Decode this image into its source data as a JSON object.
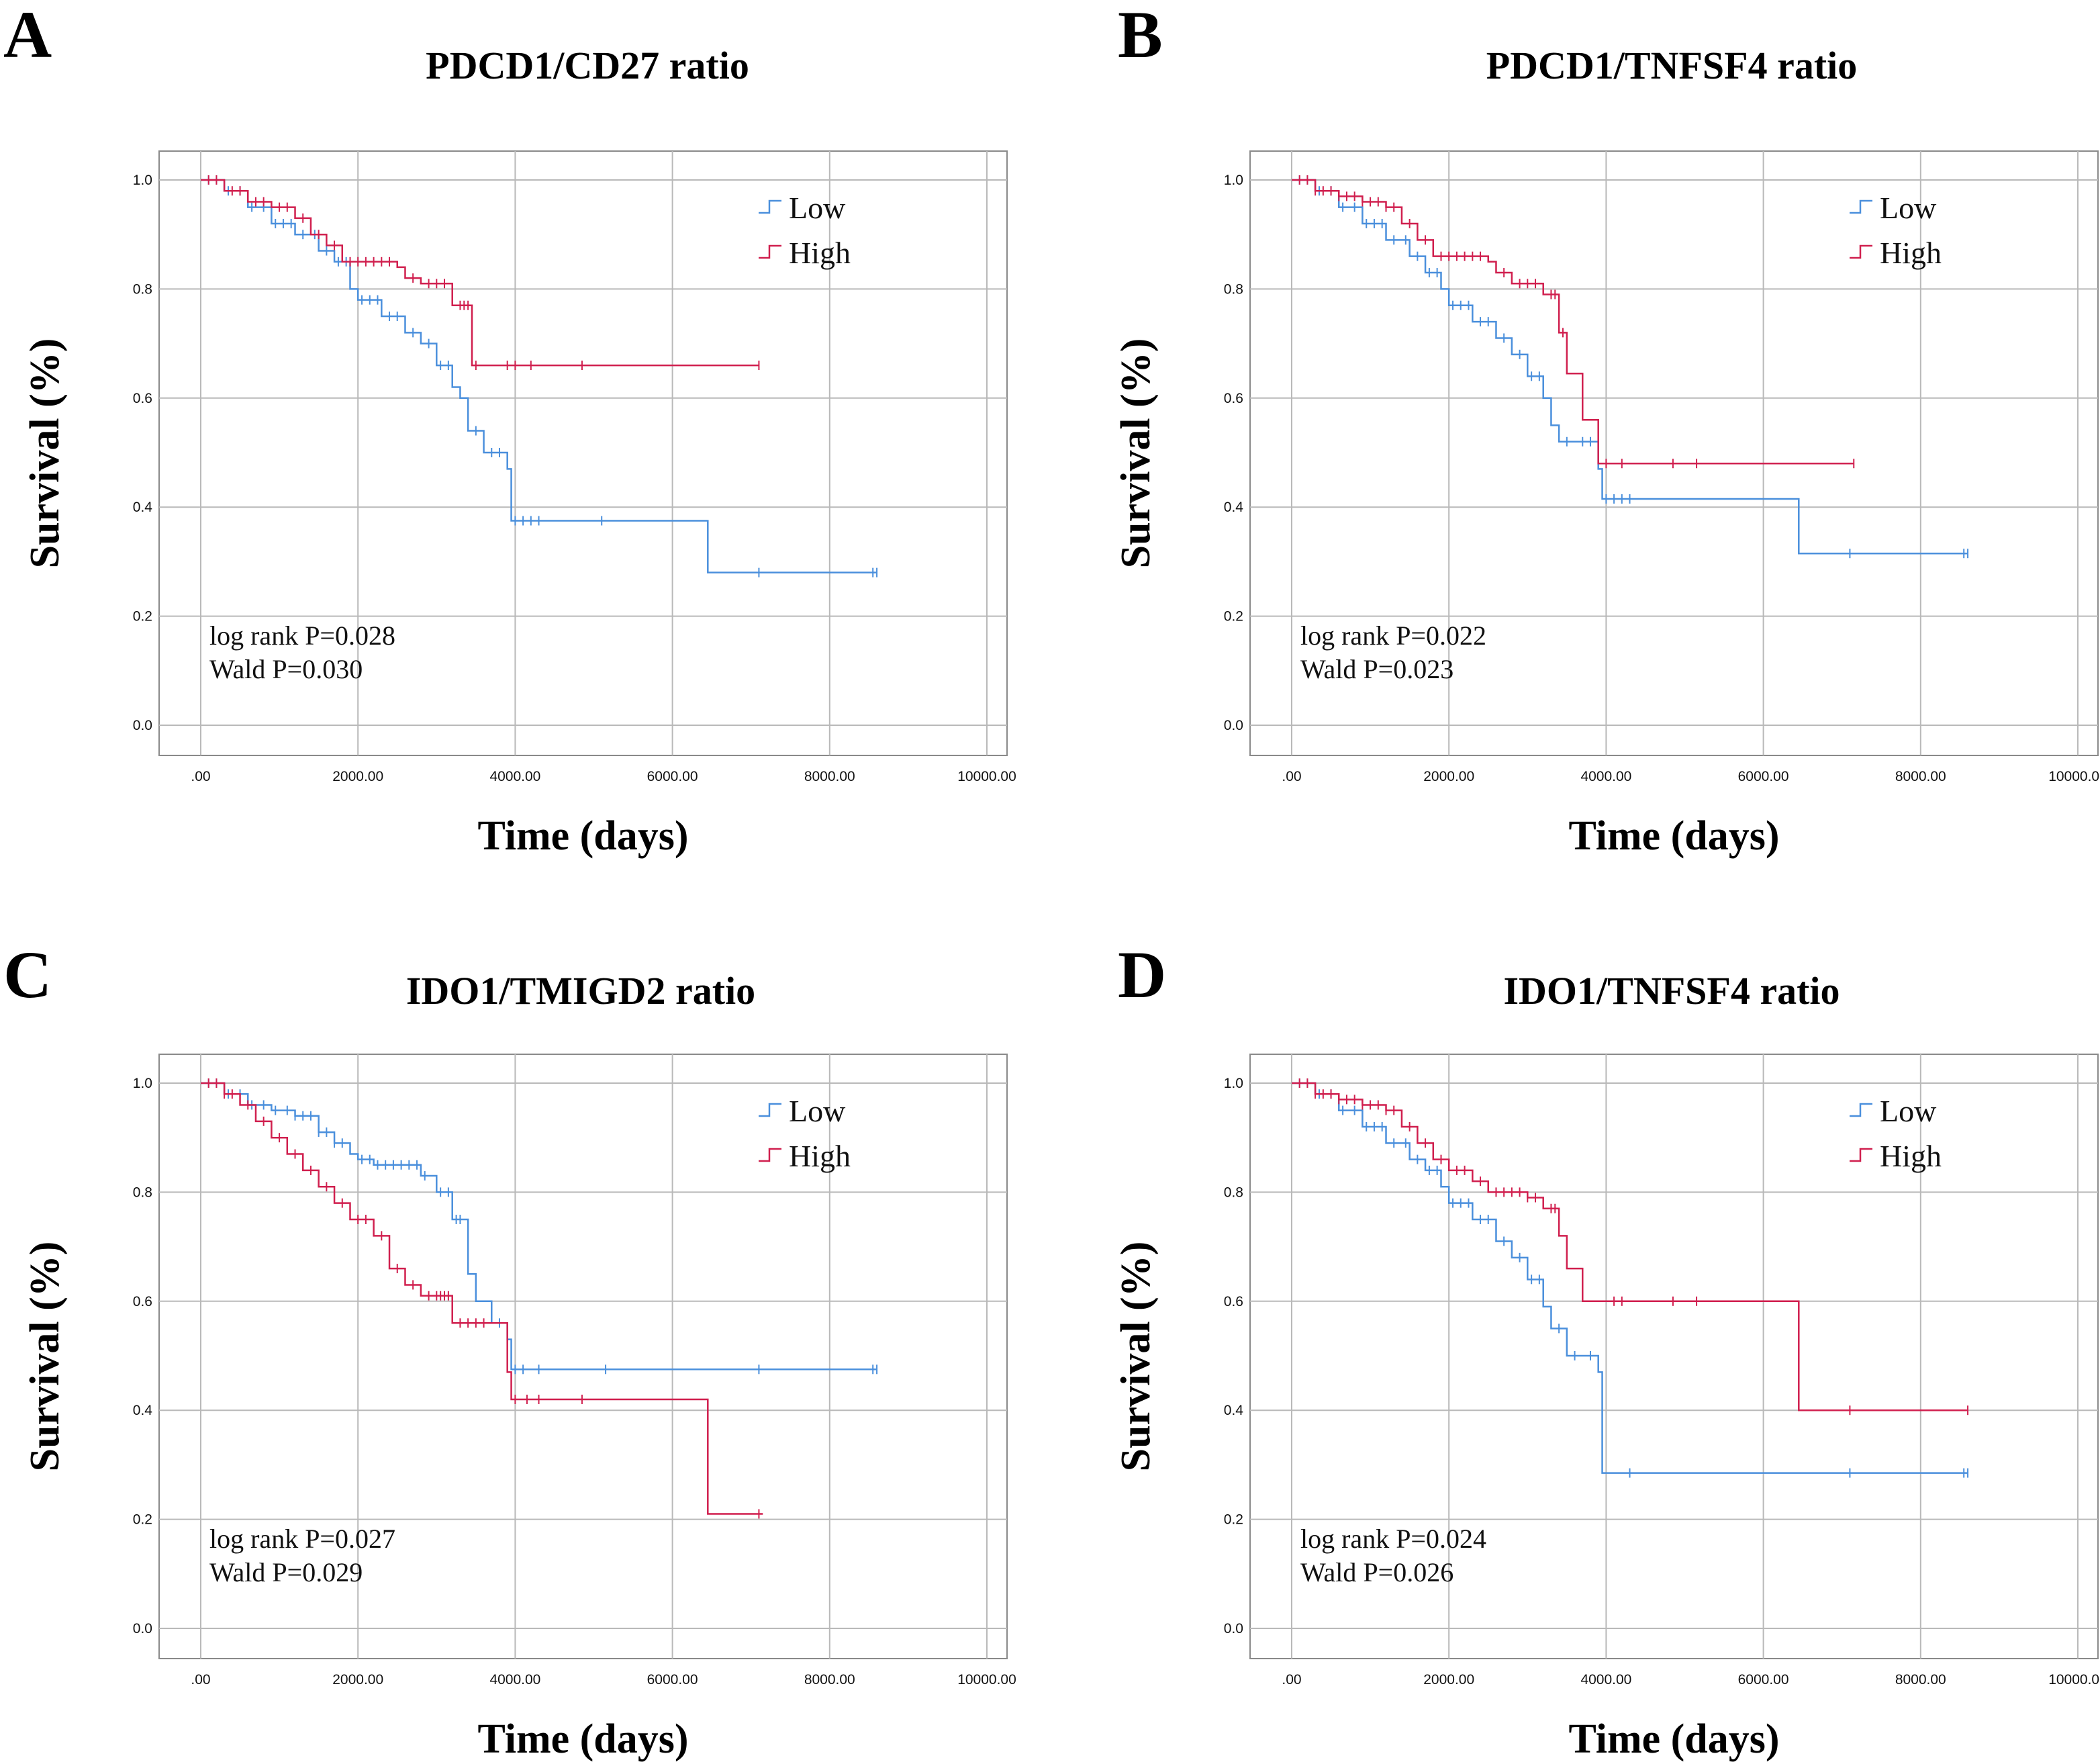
{
  "chart_data": [
    {
      "panel": "A",
      "type": "line",
      "subtype": "kaplan-meier",
      "title": "PDCD1/CD27 ratio",
      "xlabel": "Time (days)",
      "ylabel": "Survival (%)",
      "xlim": [
        0,
        10000
      ],
      "ylim": [
        0,
        1
      ],
      "xticks": [
        ".00",
        "2000.00",
        "4000.00",
        "6000.00",
        "8000.00",
        "10000.00"
      ],
      "yticks": [
        "0.0",
        "0.2",
        "0.4",
        "0.6",
        "0.8",
        "1.0"
      ],
      "legend": "top-right",
      "annotations": [
        "log rank P=0.028",
        "Wald P=0.030"
      ],
      "series": [
        {
          "name": "Low",
          "color": "#4a8fdc",
          "steps": [
            [
              0,
              1.0
            ],
            [
              300,
              0.98
            ],
            [
              600,
              0.95
            ],
            [
              900,
              0.92
            ],
            [
              1200,
              0.9
            ],
            [
              1500,
              0.87
            ],
            [
              1700,
              0.85
            ],
            [
              1900,
              0.8
            ],
            [
              2000,
              0.78
            ],
            [
              2300,
              0.75
            ],
            [
              2600,
              0.72
            ],
            [
              2800,
              0.7
            ],
            [
              3000,
              0.66
            ],
            [
              3200,
              0.62
            ],
            [
              3300,
              0.6
            ],
            [
              3400,
              0.54
            ],
            [
              3600,
              0.5
            ],
            [
              3900,
              0.47
            ],
            [
              3950,
              0.375
            ],
            [
              6450,
              0.28
            ],
            [
              8600,
              0.28
            ]
          ],
          "censor": [
            100,
            200,
            350,
            500,
            650,
            800,
            950,
            1050,
            1150,
            1300,
            1450,
            1600,
            1750,
            1850,
            2050,
            2150,
            2250,
            2400,
            2500,
            2700,
            2900,
            3050,
            3150,
            3500,
            3700,
            3800,
            4000,
            4100,
            4200,
            4300,
            5100,
            7100,
            8550,
            8600
          ]
        },
        {
          "name": "High",
          "color": "#d01f4e",
          "steps": [
            [
              0,
              1.0
            ],
            [
              300,
              0.98
            ],
            [
              600,
              0.96
            ],
            [
              900,
              0.95
            ],
            [
              1200,
              0.93
            ],
            [
              1400,
              0.9
            ],
            [
              1600,
              0.88
            ],
            [
              1800,
              0.85
            ],
            [
              2500,
              0.84
            ],
            [
              2600,
              0.82
            ],
            [
              2800,
              0.81
            ],
            [
              3200,
              0.77
            ],
            [
              3450,
              0.66
            ],
            [
              7100,
              0.66
            ]
          ],
          "censor": [
            100,
            200,
            400,
            500,
            700,
            800,
            1000,
            1100,
            1300,
            1500,
            1700,
            1900,
            2000,
            2100,
            2200,
            2300,
            2400,
            2700,
            2900,
            3000,
            3100,
            3300,
            3350,
            3400,
            3500,
            3900,
            4000,
            4200,
            4850,
            7100
          ]
        }
      ]
    },
    {
      "panel": "B",
      "type": "line",
      "subtype": "kaplan-meier",
      "title": "PDCD1/TNFSF4 ratio",
      "xlabel": "Time (days)",
      "ylabel": "Survival (%)",
      "xlim": [
        0,
        10000
      ],
      "ylim": [
        0,
        1
      ],
      "xticks": [
        ".00",
        "2000.00",
        "4000.00",
        "6000.00",
        "8000.00",
        "10000.00"
      ],
      "yticks": [
        "0.0",
        "0.2",
        "0.4",
        "0.6",
        "0.8",
        "1.0"
      ],
      "legend": "top-right",
      "annotations": [
        "log rank P=0.022",
        "Wald P=0.023"
      ],
      "series": [
        {
          "name": "Low",
          "color": "#4a8fdc",
          "steps": [
            [
              0,
              1.0
            ],
            [
              300,
              0.98
            ],
            [
              600,
              0.95
            ],
            [
              900,
              0.92
            ],
            [
              1200,
              0.89
            ],
            [
              1500,
              0.86
            ],
            [
              1700,
              0.83
            ],
            [
              1900,
              0.8
            ],
            [
              2000,
              0.77
            ],
            [
              2300,
              0.74
            ],
            [
              2600,
              0.71
            ],
            [
              2800,
              0.68
            ],
            [
              3000,
              0.64
            ],
            [
              3200,
              0.6
            ],
            [
              3300,
              0.55
            ],
            [
              3400,
              0.52
            ],
            [
              3900,
              0.47
            ],
            [
              3950,
              0.415
            ],
            [
              6450,
              0.315
            ],
            [
              8600,
              0.315
            ]
          ],
          "censor": [
            100,
            200,
            350,
            500,
            650,
            800,
            950,
            1050,
            1150,
            1300,
            1450,
            1600,
            1750,
            1850,
            2050,
            2150,
            2250,
            2400,
            2500,
            2700,
            2900,
            3050,
            3150,
            3500,
            3700,
            3800,
            4000,
            4100,
            4200,
            4300,
            7100,
            8550,
            8600
          ]
        },
        {
          "name": "High",
          "color": "#d01f4e",
          "steps": [
            [
              0,
              1.0
            ],
            [
              300,
              0.98
            ],
            [
              600,
              0.97
            ],
            [
              900,
              0.96
            ],
            [
              1200,
              0.95
            ],
            [
              1400,
              0.92
            ],
            [
              1600,
              0.89
            ],
            [
              1800,
              0.86
            ],
            [
              2500,
              0.85
            ],
            [
              2600,
              0.83
            ],
            [
              2800,
              0.81
            ],
            [
              3200,
              0.79
            ],
            [
              3400,
              0.72
            ],
            [
              3500,
              0.645
            ],
            [
              3700,
              0.56
            ],
            [
              3900,
              0.48
            ],
            [
              7150,
              0.48
            ]
          ],
          "censor": [
            100,
            200,
            300,
            400,
            500,
            600,
            700,
            800,
            900,
            1000,
            1100,
            1200,
            1300,
            1500,
            1700,
            1900,
            2000,
            2100,
            2200,
            2300,
            2400,
            2700,
            2900,
            3000,
            3100,
            3300,
            3350,
            3450,
            4000,
            4200,
            4850,
            5150,
            7150
          ]
        }
      ]
    },
    {
      "panel": "C",
      "type": "line",
      "subtype": "kaplan-meier",
      "title": "IDO1/TMIGD2 ratio",
      "xlabel": "Time (days)",
      "ylabel": "Survival (%)",
      "xlim": [
        0,
        10000
      ],
      "ylim": [
        0,
        1
      ],
      "xticks": [
        ".00",
        "2000.00",
        "4000.00",
        "6000.00",
        "8000.00",
        "10000.00"
      ],
      "yticks": [
        "0.0",
        "0.2",
        "0.4",
        "0.6",
        "0.8",
        "1.0"
      ],
      "legend": "top-right",
      "annotations": [
        "log rank P=0.027",
        "Wald P=0.029"
      ],
      "series": [
        {
          "name": "Low",
          "color": "#4a8fdc",
          "steps": [
            [
              0,
              1.0
            ],
            [
              300,
              0.98
            ],
            [
              600,
              0.96
            ],
            [
              900,
              0.95
            ],
            [
              1200,
              0.94
            ],
            [
              1500,
              0.91
            ],
            [
              1700,
              0.89
            ],
            [
              1900,
              0.87
            ],
            [
              2000,
              0.86
            ],
            [
              2200,
              0.85
            ],
            [
              2800,
              0.83
            ],
            [
              3000,
              0.8
            ],
            [
              3200,
              0.75
            ],
            [
              3400,
              0.65
            ],
            [
              3500,
              0.6
            ],
            [
              3700,
              0.56
            ],
            [
              3900,
              0.53
            ],
            [
              3950,
              0.475
            ],
            [
              8600,
              0.475
            ]
          ],
          "censor": [
            100,
            200,
            350,
            500,
            650,
            800,
            950,
            1100,
            1200,
            1300,
            1400,
            1500,
            1600,
            1700,
            1800,
            2050,
            2150,
            2250,
            2350,
            2450,
            2550,
            2650,
            2750,
            2850,
            3050,
            3150,
            3250,
            3300,
            3800,
            4000,
            4100,
            4300,
            5150,
            7100,
            8550,
            8600
          ]
        },
        {
          "name": "High",
          "color": "#d01f4e",
          "steps": [
            [
              0,
              1.0
            ],
            [
              300,
              0.98
            ],
            [
              500,
              0.96
            ],
            [
              700,
              0.93
            ],
            [
              900,
              0.9
            ],
            [
              1100,
              0.87
            ],
            [
              1300,
              0.84
            ],
            [
              1500,
              0.81
            ],
            [
              1700,
              0.78
            ],
            [
              1900,
              0.75
            ],
            [
              2200,
              0.72
            ],
            [
              2400,
              0.66
            ],
            [
              2600,
              0.63
            ],
            [
              2800,
              0.61
            ],
            [
              3200,
              0.56
            ],
            [
              3900,
              0.47
            ],
            [
              3950,
              0.42
            ],
            [
              6450,
              0.21
            ],
            [
              7150,
              0.21
            ]
          ],
          "censor": [
            100,
            200,
            300,
            400,
            600,
            800,
            1000,
            1200,
            1400,
            1600,
            1800,
            2000,
            2100,
            2300,
            2500,
            2700,
            2900,
            3000,
            3050,
            3100,
            3150,
            3300,
            3400,
            3500,
            3600,
            4000,
            4150,
            4300,
            4850,
            7100
          ]
        }
      ]
    },
    {
      "panel": "D",
      "type": "line",
      "subtype": "kaplan-meier",
      "title": "IDO1/TNFSF4 ratio",
      "xlabel": "Time (days)",
      "ylabel": "Survival (%)",
      "xlim": [
        0,
        10000
      ],
      "ylim": [
        0,
        1
      ],
      "xticks": [
        ".00",
        "2000.00",
        "4000.00",
        "6000.00",
        "8000.00",
        "10000.00"
      ],
      "yticks": [
        "0.0",
        "0.2",
        "0.4",
        "0.6",
        "0.8",
        "1.0"
      ],
      "legend": "top-right",
      "annotations": [
        "log rank P=0.024",
        "Wald P=0.026"
      ],
      "series": [
        {
          "name": "Low",
          "color": "#4a8fdc",
          "steps": [
            [
              0,
              1.0
            ],
            [
              300,
              0.98
            ],
            [
              600,
              0.95
            ],
            [
              900,
              0.92
            ],
            [
              1200,
              0.89
            ],
            [
              1500,
              0.86
            ],
            [
              1700,
              0.84
            ],
            [
              1900,
              0.81
            ],
            [
              2000,
              0.78
            ],
            [
              2300,
              0.75
            ],
            [
              2600,
              0.71
            ],
            [
              2800,
              0.68
            ],
            [
              3000,
              0.64
            ],
            [
              3200,
              0.59
            ],
            [
              3300,
              0.55
            ],
            [
              3500,
              0.5
            ],
            [
              3900,
              0.47
            ],
            [
              3950,
              0.285
            ],
            [
              8600,
              0.285
            ]
          ],
          "censor": [
            100,
            200,
            350,
            500,
            650,
            800,
            950,
            1050,
            1150,
            1300,
            1450,
            1600,
            1750,
            1850,
            2050,
            2150,
            2250,
            2400,
            2500,
            2700,
            2900,
            3050,
            3150,
            3400,
            3600,
            3800,
            4300,
            7100,
            8550,
            8600
          ]
        },
        {
          "name": "High",
          "color": "#d01f4e",
          "steps": [
            [
              0,
              1.0
            ],
            [
              300,
              0.98
            ],
            [
              600,
              0.97
            ],
            [
              900,
              0.96
            ],
            [
              1200,
              0.95
            ],
            [
              1400,
              0.92
            ],
            [
              1600,
              0.89
            ],
            [
              1800,
              0.86
            ],
            [
              2000,
              0.84
            ],
            [
              2300,
              0.82
            ],
            [
              2500,
              0.8
            ],
            [
              3000,
              0.79
            ],
            [
              3200,
              0.77
            ],
            [
              3400,
              0.72
            ],
            [
              3500,
              0.66
            ],
            [
              3700,
              0.6
            ],
            [
              6450,
              0.4
            ],
            [
              8600,
              0.4
            ]
          ],
          "censor": [
            100,
            200,
            300,
            400,
            500,
            600,
            700,
            800,
            900,
            1000,
            1100,
            1200,
            1300,
            1500,
            1700,
            1900,
            2100,
            2200,
            2400,
            2600,
            2700,
            2800,
            2900,
            3000,
            3100,
            3300,
            3350,
            4100,
            4200,
            4850,
            5150,
            7100,
            8600
          ]
        }
      ]
    }
  ]
}
